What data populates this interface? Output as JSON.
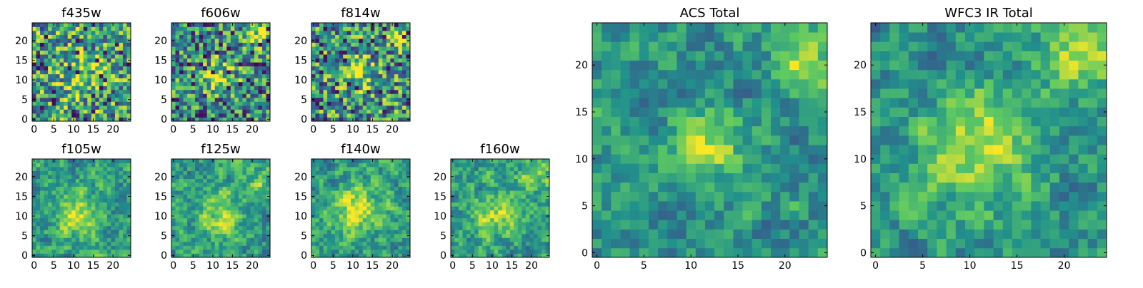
{
  "chart_data": {
    "type": "heatmap",
    "colormap": "viridis",
    "grid_size": 25,
    "color_scale": "normalized intensity, 0 = dark purple, 1 = yellow",
    "panels": [
      {
        "id": "f435w",
        "title": "f435w",
        "kind": "small",
        "x_ticks": [
          "0",
          "5",
          "10",
          "15",
          "20"
        ],
        "y_ticks": [
          "0",
          "5",
          "10",
          "15",
          "20"
        ],
        "xlim": [
          0,
          24
        ],
        "ylim": [
          0,
          24
        ],
        "texture": "fine noise",
        "peaks": [
          {
            "x": 12,
            "y": 11,
            "sigma": 3.5,
            "amp": 0.25
          }
        ],
        "base": 0.55
      },
      {
        "id": "f606w",
        "title": "f606w",
        "kind": "small",
        "x_ticks": [
          "0",
          "5",
          "10",
          "15",
          "20"
        ],
        "y_ticks": [
          "0",
          "5",
          "10",
          "15",
          "20"
        ],
        "xlim": [
          0,
          24
        ],
        "ylim": [
          0,
          24
        ],
        "texture": "fine noise",
        "peaks": [
          {
            "x": 12,
            "y": 11,
            "sigma": 3.0,
            "amp": 0.35
          },
          {
            "x": 22,
            "y": 21,
            "sigma": 2.0,
            "amp": 0.45
          }
        ],
        "base": 0.45
      },
      {
        "id": "f814w",
        "title": "f814w",
        "kind": "small",
        "x_ticks": [
          "0",
          "5",
          "10",
          "15",
          "20"
        ],
        "y_ticks": [
          "0",
          "5",
          "10",
          "15",
          "20"
        ],
        "xlim": [
          0,
          24
        ],
        "ylim": [
          0,
          24
        ],
        "texture": "fine noise",
        "peaks": [
          {
            "x": 12,
            "y": 11,
            "sigma": 3.0,
            "amp": 0.3
          },
          {
            "x": 22,
            "y": 21,
            "sigma": 2.0,
            "amp": 0.3
          }
        ],
        "base": 0.5
      },
      {
        "id": "f105w",
        "title": "f105w",
        "kind": "small",
        "x_ticks": [
          "0",
          "5",
          "10",
          "15",
          "20"
        ],
        "y_ticks": [
          "0",
          "5",
          "10",
          "15",
          "20"
        ],
        "xlim": [
          0,
          24
        ],
        "ylim": [
          0,
          24
        ],
        "texture": "blocky noise",
        "peaks": [
          {
            "x": 11,
            "y": 10,
            "sigma": 4.0,
            "amp": 0.35
          }
        ],
        "base": 0.55
      },
      {
        "id": "f125w",
        "title": "f125w",
        "kind": "small",
        "x_ticks": [
          "0",
          "5",
          "10",
          "15",
          "20"
        ],
        "y_ticks": [
          "0",
          "5",
          "10",
          "15",
          "20"
        ],
        "xlim": [
          0,
          24
        ],
        "ylim": [
          0,
          24
        ],
        "texture": "blocky noise",
        "peaks": [
          {
            "x": 12,
            "y": 11,
            "sigma": 4.0,
            "amp": 0.3
          },
          {
            "x": 22,
            "y": 18,
            "sigma": 2.5,
            "amp": 0.3
          }
        ],
        "base": 0.55
      },
      {
        "id": "f140w",
        "title": "f140w",
        "kind": "small",
        "x_ticks": [
          "0",
          "5",
          "10",
          "15",
          "20"
        ],
        "y_ticks": [
          "0",
          "5",
          "10",
          "15",
          "20"
        ],
        "xlim": [
          0,
          24
        ],
        "ylim": [
          0,
          24
        ],
        "texture": "blocky noise",
        "peaks": [
          {
            "x": 11,
            "y": 12,
            "sigma": 4.5,
            "amp": 0.35
          }
        ],
        "base": 0.55
      },
      {
        "id": "f160w",
        "title": "f160w",
        "kind": "small",
        "x_ticks": [
          "0",
          "5",
          "10",
          "15",
          "20"
        ],
        "y_ticks": [
          "0",
          "5",
          "10",
          "15",
          "20"
        ],
        "xlim": [
          0,
          24
        ],
        "ylim": [
          0,
          24
        ],
        "texture": "blocky noise",
        "peaks": [
          {
            "x": 11,
            "y": 11,
            "sigma": 4.0,
            "amp": 0.3
          },
          {
            "x": 21,
            "y": 21,
            "sigma": 2.5,
            "amp": 0.35
          }
        ],
        "base": 0.55
      },
      {
        "id": "acs-total",
        "title": "ACS Total",
        "kind": "large",
        "x_ticks": [
          "0",
          "5",
          "10",
          "15",
          "20"
        ],
        "y_ticks": [
          "0",
          "5",
          "10",
          "15",
          "20"
        ],
        "xlim": [
          0,
          24
        ],
        "ylim": [
          0,
          24
        ],
        "texture": "smooth noise",
        "peaks": [
          {
            "x": 12,
            "y": 11,
            "sigma": 2.5,
            "amp": 0.35
          },
          {
            "x": 22,
            "y": 20,
            "sigma": 2.0,
            "amp": 0.45
          }
        ],
        "base": 0.52
      },
      {
        "id": "wfc3-ir-total",
        "title": "WFC3 IR Total",
        "kind": "large",
        "x_ticks": [
          "0",
          "5",
          "10",
          "15",
          "20"
        ],
        "y_ticks": [
          "0",
          "5",
          "10",
          "15",
          "20"
        ],
        "xlim": [
          0,
          24
        ],
        "ylim": [
          0,
          24
        ],
        "texture": "smooth noise",
        "peaks": [
          {
            "x": 11,
            "y": 11,
            "sigma": 4.5,
            "amp": 0.4
          },
          {
            "x": 22,
            "y": 21,
            "sigma": 3.0,
            "amp": 0.35
          }
        ],
        "base": 0.5
      }
    ],
    "colors": {
      "viridis_stops": [
        "#440154",
        "#3b528b",
        "#21918c",
        "#5ec962",
        "#fde725"
      ],
      "axis": "#000000",
      "background": "#ffffff"
    }
  }
}
